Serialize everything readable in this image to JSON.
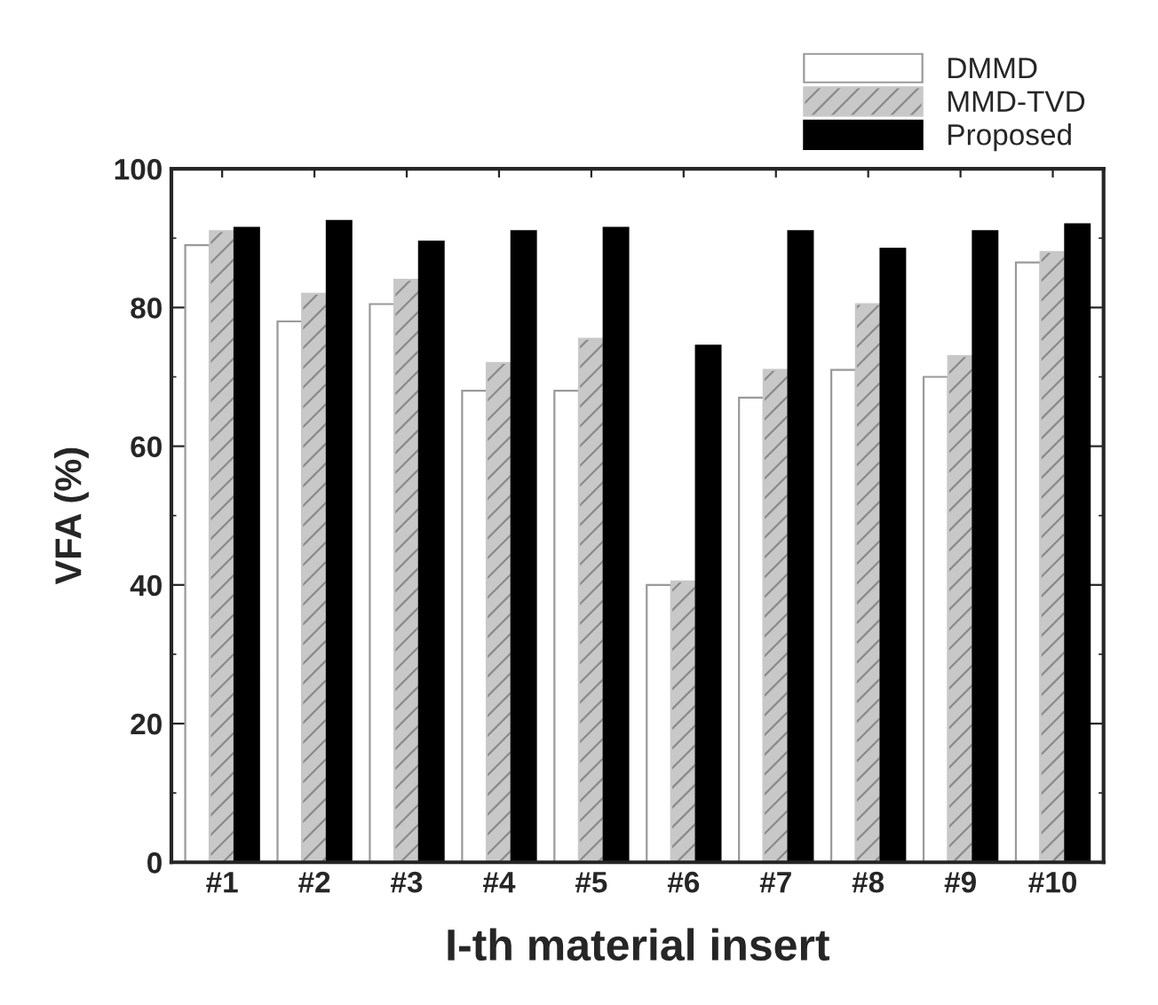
{
  "chart_data": {
    "type": "bar",
    "xlabel": "I-th material insert",
    "ylabel": "VFA (%)",
    "categories": [
      "#1",
      "#2",
      "#3",
      "#4",
      "#5",
      "#6",
      "#7",
      "#8",
      "#9",
      "#10"
    ],
    "series": [
      {
        "name": "DMMD",
        "color": "#ffffff",
        "values": [
          89,
          78,
          80.5,
          68,
          68,
          40,
          67,
          71,
          70,
          86.5
        ]
      },
      {
        "name": "MMD-TVD",
        "color": "#c8c8c8",
        "values": [
          91,
          82,
          84,
          72,
          75.5,
          40.5,
          71,
          80.5,
          73,
          88
        ]
      },
      {
        "name": "Proposed",
        "color": "#000000",
        "values": [
          91.5,
          92.5,
          89.5,
          91,
          91.5,
          74.5,
          91,
          88.5,
          91,
          92
        ]
      }
    ],
    "ylim": [
      0,
      100
    ],
    "yticks": [
      0,
      20,
      40,
      60,
      80,
      100
    ],
    "grid": false,
    "legend": "top right"
  }
}
